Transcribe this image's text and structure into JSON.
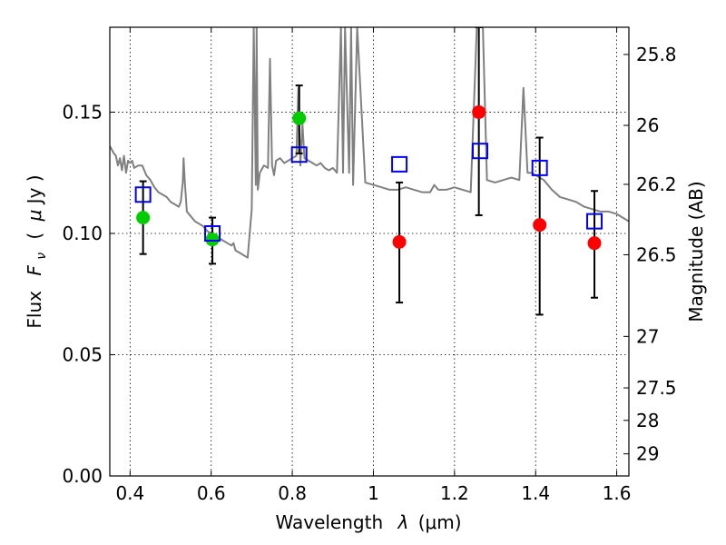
{
  "chart_data": {
    "type": "scatter",
    "xlabel_text": "Wavelength",
    "xlabel_symbol": "λ",
    "xlabel_unit": "(μm)",
    "ylabel_text": "Flux",
    "ylabel_symbol": "F",
    "ylabel_symbol_sub": "ν",
    "ylabel_unit_open": "(",
    "ylabel_unit_mu": "μ",
    "ylabel_unit_rest": "Jy )",
    "y2label": "Magnitude (AB)",
    "xlim": [
      0.35,
      1.63
    ],
    "ylim": [
      0.0,
      0.185
    ],
    "grid": true,
    "x_ticks": [
      {
        "value": 0.4,
        "label": "0.4"
      },
      {
        "value": 0.6,
        "label": "0.6"
      },
      {
        "value": 0.8,
        "label": "0.8"
      },
      {
        "value": 1.0,
        "label": "1"
      },
      {
        "value": 1.2,
        "label": "1.2"
      },
      {
        "value": 1.4,
        "label": "1.4"
      },
      {
        "value": 1.6,
        "label": "1.6"
      }
    ],
    "y_ticks": [
      {
        "value": 0.0,
        "label": "0.00"
      },
      {
        "value": 0.05,
        "label": "0.05"
      },
      {
        "value": 0.1,
        "label": "0.10"
      },
      {
        "value": 0.15,
        "label": "0.15"
      }
    ],
    "y2_ticks": [
      {
        "mag": 25.8,
        "label": "25.8"
      },
      {
        "mag": 26.0,
        "label": "26"
      },
      {
        "mag": 26.2,
        "label": "26.2"
      },
      {
        "mag": 26.5,
        "label": "26.5"
      },
      {
        "mag": 27.0,
        "label": "27"
      },
      {
        "mag": 27.5,
        "label": "27.5"
      },
      {
        "mag": 28.0,
        "label": "28"
      },
      {
        "mag": 29.0,
        "label": "29"
      }
    ],
    "series": [
      {
        "kind": "line",
        "color": "#808080",
        "x": [
          0.35,
          0.36,
          0.365,
          0.37,
          0.375,
          0.38,
          0.385,
          0.39,
          0.395,
          0.4,
          0.405,
          0.41,
          0.42,
          0.43,
          0.44,
          0.45,
          0.46,
          0.47,
          0.48,
          0.49,
          0.5,
          0.51,
          0.52,
          0.525,
          0.53,
          0.532,
          0.535,
          0.54,
          0.55,
          0.56,
          0.57,
          0.58,
          0.59,
          0.6,
          0.61,
          0.62,
          0.63,
          0.64,
          0.65,
          0.655,
          0.66,
          0.67,
          0.68,
          0.69,
          0.7,
          0.705,
          0.71,
          0.712,
          0.715,
          0.72,
          0.73,
          0.74,
          0.745,
          0.75,
          0.755,
          0.76,
          0.77,
          0.78,
          0.79,
          0.8,
          0.81,
          0.815,
          0.82,
          0.825,
          0.83,
          0.84,
          0.85,
          0.86,
          0.87,
          0.88,
          0.89,
          0.9,
          0.91,
          0.92,
          0.925,
          0.93,
          0.94,
          0.945,
          0.95,
          0.96,
          0.98,
          1.0,
          1.02,
          1.04,
          1.06,
          1.08,
          1.1,
          1.12,
          1.14,
          1.15,
          1.16,
          1.18,
          1.2,
          1.22,
          1.24,
          1.255,
          1.265,
          1.27,
          1.28,
          1.3,
          1.32,
          1.34,
          1.36,
          1.37,
          1.38,
          1.39,
          1.4,
          1.42,
          1.44,
          1.46,
          1.48,
          1.5,
          1.52,
          1.54,
          1.56,
          1.58,
          1.6,
          1.62,
          1.63
        ],
        "y": [
          0.136,
          0.133,
          0.132,
          0.128,
          0.131,
          0.126,
          0.132,
          0.125,
          0.13,
          0.129,
          0.13,
          0.127,
          0.128,
          0.128,
          0.124,
          0.122,
          0.119,
          0.117,
          0.116,
          0.115,
          0.113,
          0.112,
          0.111,
          0.113,
          0.121,
          0.131,
          0.121,
          0.109,
          0.107,
          0.105,
          0.104,
          0.103,
          0.101,
          0.1,
          0.099,
          0.098,
          0.097,
          0.096,
          0.095,
          0.096,
          0.093,
          0.092,
          0.091,
          0.09,
          0.11,
          0.185,
          0.12,
          0.185,
          0.118,
          0.125,
          0.128,
          0.127,
          0.172,
          0.128,
          0.124,
          0.13,
          0.131,
          0.129,
          0.13,
          0.131,
          0.132,
          0.16,
          0.128,
          0.145,
          0.131,
          0.13,
          0.129,
          0.128,
          0.129,
          0.127,
          0.126,
          0.127,
          0.125,
          0.185,
          0.125,
          0.185,
          0.125,
          0.185,
          0.12,
          0.185,
          0.121,
          0.12,
          0.119,
          0.118,
          0.118,
          0.119,
          0.118,
          0.117,
          0.117,
          0.12,
          0.118,
          0.118,
          0.119,
          0.118,
          0.117,
          0.185,
          0.185,
          0.185,
          0.122,
          0.121,
          0.122,
          0.123,
          0.122,
          0.16,
          0.125,
          0.125,
          0.124,
          0.122,
          0.118,
          0.115,
          0.114,
          0.113,
          0.111,
          0.11,
          0.109,
          0.109,
          0.108,
          0.106,
          0.105
        ]
      },
      {
        "kind": "errorbar",
        "color": "#000000",
        "points": [
          {
            "x": 0.432,
            "low": 0.0915,
            "high": 0.1215
          },
          {
            "x": 0.603,
            "low": 0.0875,
            "high": 0.1065
          },
          {
            "x": 0.817,
            "low": 0.133,
            "high": 0.161
          },
          {
            "x": 1.064,
            "low": 0.0715,
            "high": 0.121
          },
          {
            "x": 1.26,
            "low": 0.1075,
            "high": 0.185
          },
          {
            "x": 1.41,
            "low": 0.0665,
            "high": 0.1395
          },
          {
            "x": 1.545,
            "low": 0.0735,
            "high": 0.1175
          }
        ]
      },
      {
        "kind": "points",
        "marker": "circle",
        "color": "#00cc00",
        "x": [
          0.432,
          0.603,
          0.817
        ],
        "y": [
          0.1065,
          0.0975,
          0.1475
        ]
      },
      {
        "kind": "points",
        "marker": "circle",
        "color": "#ff0000",
        "x": [
          1.064,
          1.26,
          1.41,
          1.545
        ],
        "y": [
          0.0965,
          0.15,
          0.1035,
          0.096
        ]
      },
      {
        "kind": "points",
        "marker": "square",
        "color": "#0000ff",
        "x": [
          0.432,
          0.603,
          0.817,
          1.064,
          1.263,
          1.41,
          1.545
        ],
        "y": [
          0.116,
          0.1,
          0.1325,
          0.1285,
          0.134,
          0.127,
          0.105
        ]
      }
    ]
  }
}
